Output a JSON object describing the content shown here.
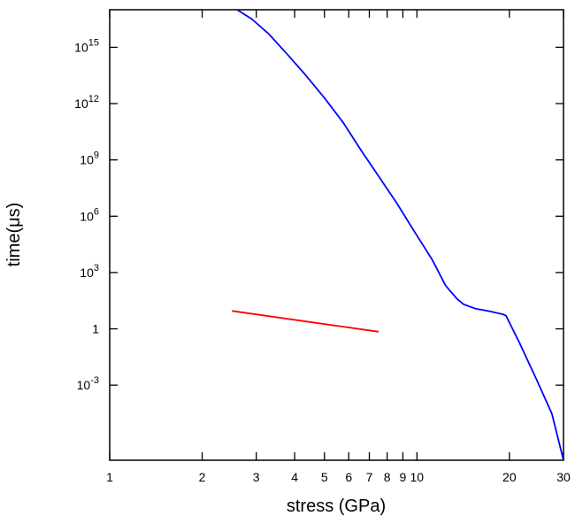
{
  "chart_data": {
    "type": "line",
    "xlabel": "stress (GPa)",
    "ylabel": "time(μs)",
    "x_scale": "log",
    "y_scale": "log",
    "xlim": [
      1,
      30
    ],
    "ylim": [
      1e-07,
      1e+17
    ],
    "x_ticks_labeled": [
      {
        "value": 1,
        "label": "1"
      },
      {
        "value": 2,
        "label": "2"
      },
      {
        "value": 3,
        "label": "3"
      },
      {
        "value": 4,
        "label": "4"
      },
      {
        "value": 5,
        "label": "5"
      },
      {
        "value": 6,
        "label": "6"
      },
      {
        "value": 7,
        "label": "7"
      },
      {
        "value": 8,
        "label": "8"
      },
      {
        "value": 9,
        "label": "9"
      },
      {
        "value": 10,
        "label": "10"
      },
      {
        "value": 20,
        "label": "20"
      },
      {
        "value": 30,
        "label": "30"
      }
    ],
    "y_ticks": [
      {
        "value": 1000000000000000.0,
        "base": "10",
        "exp": "15"
      },
      {
        "value": 1000000000000.0,
        "base": "10",
        "exp": "12"
      },
      {
        "value": 1000000000.0,
        "base": "10",
        "exp": "9"
      },
      {
        "value": 1000000.0,
        "base": "10",
        "exp": "6"
      },
      {
        "value": 1000.0,
        "base": "10",
        "exp": "3"
      },
      {
        "value": 1,
        "base": "1",
        "exp": ""
      },
      {
        "value": 0.001,
        "base": "10",
        "exp": "-3"
      }
    ],
    "series": [
      {
        "color": "#0000ff",
        "x": [
          2.6,
          2.9,
          3.3,
          3.75,
          4.3,
          5.0,
          5.75,
          6.6,
          7.6,
          8.6,
          9.8,
          11.2,
          12.4,
          13.5,
          14.2,
          15.5,
          17.0,
          19.0,
          19.5,
          21.5,
          24.5,
          27.5,
          30.0
        ],
        "y": [
          1e+17,
          3.2e+16,
          5000000000000000.0,
          500000000000000.0,
          40000000000000.0,
          2000000000000.0,
          100000000000.0,
          3000000000.0,
          100000000.0,
          5000000.0,
          160000.0,
          5000.0,
          200,
          40,
          20,
          12,
          9,
          6,
          5,
          0.2,
          0.002,
          3e-05,
          1e-07
        ]
      },
      {
        "color": "#ff0000",
        "x": [
          2.5,
          7.5
        ],
        "y": [
          9,
          0.7
        ]
      }
    ]
  }
}
